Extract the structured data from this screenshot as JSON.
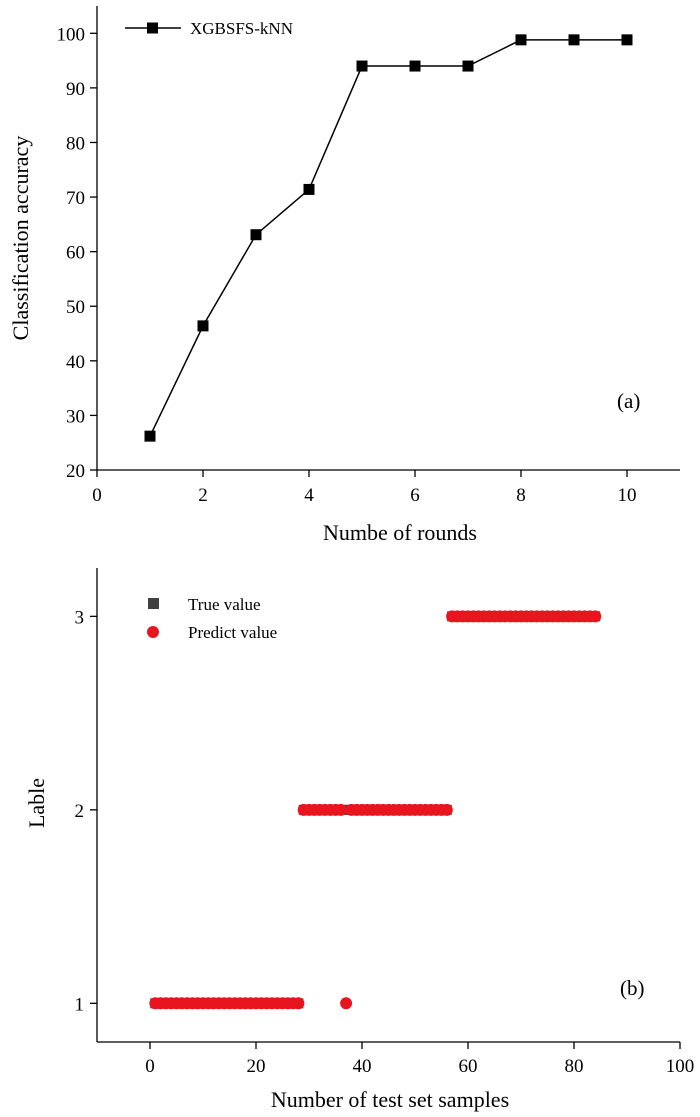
{
  "chart_data": [
    {
      "type": "line",
      "xlabel": "Numbe of rounds",
      "ylabel": "Classification accuracy",
      "xlim": [
        0,
        11
      ],
      "ylim": [
        20,
        105
      ],
      "xticks": [
        0,
        2,
        4,
        6,
        8,
        10
      ],
      "yticks": [
        20,
        30,
        40,
        50,
        60,
        70,
        80,
        90,
        100
      ],
      "legend_position": "top-left",
      "annotation": "(a)",
      "series": [
        {
          "name": "XGBSFS-kNN",
          "color": "#000000",
          "marker": "square",
          "x": [
            1,
            2,
            3,
            4,
            5,
            6,
            7,
            8,
            9,
            10
          ],
          "y": [
            26.2,
            46.4,
            63.1,
            71.4,
            94.0,
            94.0,
            94.0,
            98.8,
            98.8,
            98.8
          ]
        }
      ]
    },
    {
      "type": "scatter",
      "xlabel": "Number of test set samples",
      "ylabel": "Lable",
      "xlim": [
        -10,
        100
      ],
      "ylim": [
        0.8,
        3.25
      ],
      "xticks": [
        0,
        20,
        40,
        60,
        80,
        100
      ],
      "yticks": [
        1,
        2,
        3
      ],
      "legend_position": "top-left",
      "annotation": "(b)",
      "series": [
        {
          "name": "True value",
          "color": "#404040",
          "marker": "square",
          "runs": [
            {
              "from": 1,
              "to": 28,
              "label": 1
            },
            {
              "from": 29,
              "to": 56,
              "label": 2
            },
            {
              "from": 57,
              "to": 84,
              "label": 3
            }
          ]
        },
        {
          "name": "Predict value",
          "color": "#e8141e",
          "marker": "circle",
          "runs": [
            {
              "from": 1,
              "to": 28,
              "label": 1
            },
            {
              "from": 37,
              "to": 37,
              "label": 1
            },
            {
              "from": 29,
              "to": 36,
              "label": 2
            },
            {
              "from": 38,
              "to": 56,
              "label": 2
            },
            {
              "from": 57,
              "to": 84,
              "label": 3
            }
          ]
        }
      ]
    }
  ]
}
